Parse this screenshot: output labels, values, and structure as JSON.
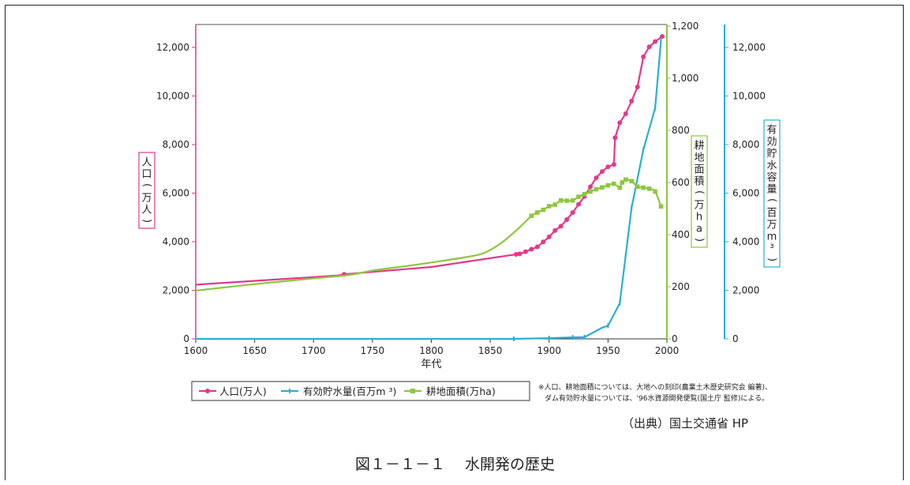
{
  "chart_data": {
    "type": "line",
    "xlabel": "年代",
    "x_ticks": [
      "1600",
      "1650",
      "1700",
      "1750",
      "1800",
      "1850",
      "1900",
      "1950",
      "2000"
    ],
    "xlim": [
      1600,
      2000
    ],
    "axes": {
      "left": {
        "title": "人口(万人)",
        "ylim": [
          0,
          13000
        ],
        "color": "#e2398a",
        "ticks": [
          {
            "v": 0,
            "t": "0"
          },
          {
            "v": 2000,
            "t": "2,000"
          },
          {
            "v": 4000,
            "t": "4,000"
          },
          {
            "v": 6000,
            "t": "6,000"
          },
          {
            "v": 8000,
            "t": "8,000"
          },
          {
            "v": 10000,
            "t": "10,000"
          },
          {
            "v": 12000,
            "t": "12,000"
          }
        ]
      },
      "right1": {
        "title": "耕地面積(万ha)",
        "ylim": [
          0,
          1200
        ],
        "color": "#8dc63f",
        "ticks": [
          {
            "v": 0,
            "t": "0"
          },
          {
            "v": 200,
            "t": "200"
          },
          {
            "v": 400,
            "t": "400"
          },
          {
            "v": 600,
            "t": "600"
          },
          {
            "v": 800,
            "t": "800"
          },
          {
            "v": 1000,
            "t": "1,000"
          },
          {
            "v": 1200,
            "t": "1,200"
          }
        ]
      },
      "right2": {
        "title": "有効貯水容量(百万m³)",
        "ylim": [
          0,
          13000
        ],
        "color": "#28b0d2",
        "ticks": [
          {
            "v": 0,
            "t": "0"
          },
          {
            "v": 2000,
            "t": "2,000"
          },
          {
            "v": 4000,
            "t": "4,000"
          },
          {
            "v": 6000,
            "t": "6,000"
          },
          {
            "v": 8000,
            "t": "8,000"
          },
          {
            "v": 10000,
            "t": "10,000"
          },
          {
            "v": 12000,
            "t": "12,000"
          }
        ]
      }
    },
    "series": [
      {
        "name": "人口(万人)",
        "axis": "left",
        "color": "#e2398a",
        "marker": "circle",
        "points": [
          [
            1600,
            2230
          ],
          [
            1721,
            2610
          ],
          [
            1726,
            2660
          ],
          [
            1800,
            2960
          ],
          [
            1872,
            3480
          ],
          [
            1875,
            3500
          ],
          [
            1880,
            3590
          ],
          [
            1885,
            3690
          ],
          [
            1890,
            3790
          ],
          [
            1895,
            3990
          ],
          [
            1900,
            4200
          ],
          [
            1905,
            4460
          ],
          [
            1910,
            4640
          ],
          [
            1915,
            4910
          ],
          [
            1920,
            5200
          ],
          [
            1925,
            5540
          ],
          [
            1930,
            5860
          ],
          [
            1935,
            6260
          ],
          [
            1940,
            6630
          ],
          [
            1945,
            6890
          ],
          [
            1950,
            7080
          ],
          [
            1955,
            7180
          ],
          [
            1956,
            8280
          ],
          [
            1960,
            8900
          ],
          [
            1965,
            9270
          ],
          [
            1970,
            9790
          ],
          [
            1975,
            10370
          ],
          [
            1980,
            11610
          ],
          [
            1985,
            12020
          ],
          [
            1990,
            12240
          ],
          [
            1996,
            12450
          ]
        ],
        "marked": [
          1726,
          1872,
          1875,
          1880,
          1885,
          1890,
          1895,
          1900,
          1905,
          1910,
          1915,
          1920,
          1925,
          1930,
          1935,
          1940,
          1945,
          1950,
          1955,
          1956,
          1960,
          1965,
          1970,
          1975,
          1980,
          1985,
          1990,
          1996
        ]
      },
      {
        "name": "有効貯水量(百万m³)",
        "axis": "right2",
        "color": "#28b0d2",
        "marker": "tick",
        "points": [
          [
            1600,
            0
          ],
          [
            1870,
            0
          ],
          [
            1900,
            30
          ],
          [
            1920,
            60
          ],
          [
            1930,
            70
          ],
          [
            1945,
            460
          ],
          [
            1950,
            540
          ],
          [
            1960,
            1470
          ],
          [
            1970,
            5400
          ],
          [
            1980,
            7790
          ],
          [
            1990,
            9500
          ],
          [
            1995,
            12300
          ]
        ],
        "marked": [
          1870,
          1900,
          1920,
          1930,
          1950,
          1960,
          1970,
          1980,
          1990,
          1995
        ]
      },
      {
        "name": "耕地面積(万ha)",
        "axis": "right1",
        "color": "#8dc63f",
        "marker": "square",
        "points": [
          [
            1600,
            185
          ],
          [
            1650,
            210
          ],
          [
            1700,
            232
          ],
          [
            1730,
            245
          ],
          [
            1750,
            262
          ],
          [
            1780,
            280
          ],
          [
            1800,
            293
          ],
          [
            1830,
            314
          ],
          [
            1845,
            330
          ],
          [
            1860,
            370
          ],
          [
            1875,
            428
          ],
          [
            1885,
            472
          ],
          [
            1890,
            485
          ],
          [
            1895,
            495
          ],
          [
            1900,
            509
          ],
          [
            1905,
            515
          ],
          [
            1910,
            531
          ],
          [
            1915,
            530
          ],
          [
            1920,
            531
          ],
          [
            1925,
            545
          ],
          [
            1930,
            555
          ],
          [
            1935,
            565
          ],
          [
            1940,
            574
          ],
          [
            1945,
            581
          ],
          [
            1950,
            589
          ],
          [
            1955,
            595
          ],
          [
            1960,
            580
          ],
          [
            1962,
            600
          ],
          [
            1965,
            611
          ],
          [
            1970,
            605
          ],
          [
            1975,
            584
          ],
          [
            1980,
            580
          ],
          [
            1985,
            576
          ],
          [
            1990,
            565
          ],
          [
            1995,
            508
          ]
        ],
        "marked": [
          1885,
          1890,
          1895,
          1900,
          1905,
          1910,
          1915,
          1920,
          1925,
          1930,
          1935,
          1940,
          1945,
          1950,
          1955,
          1960,
          1962,
          1965,
          1970,
          1975,
          1980,
          1985,
          1990,
          1995
        ]
      }
    ],
    "legend": {
      "position": "bottom-left",
      "items": [
        "人口(万人)",
        "有効貯水量(百万m ³)",
        "耕地面積(万ha)"
      ]
    }
  },
  "notes": [
    "※人口、耕地面積については、大地への刻印(農業土木歴史研究会 編著)、",
    "ダム有効貯水量については、'96水資源開発便覧(国土庁 監修)による。"
  ],
  "source": "（出典）国土交通省 HP",
  "caption": "図１－１－１　 水開発の歴史"
}
